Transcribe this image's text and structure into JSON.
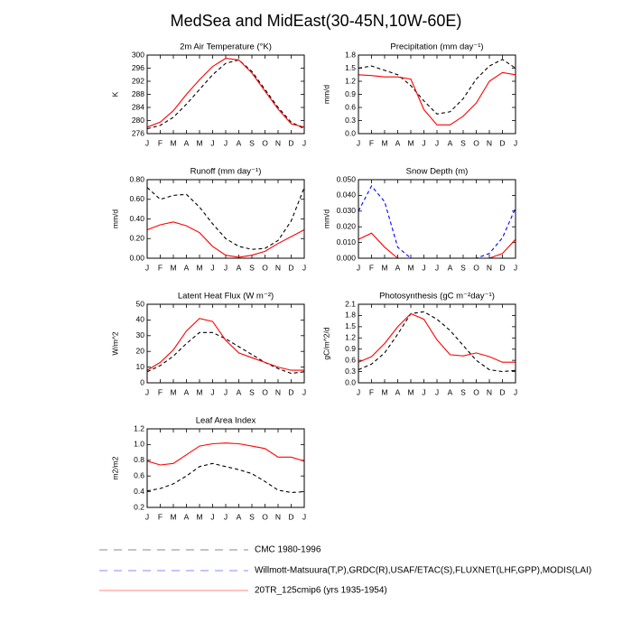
{
  "title": "MedSea and MidEast(30-45N,10W-60E)",
  "chart_data": [
    {
      "type": "line",
      "title": "2m Air Temperature (°K)",
      "ylabel": "K",
      "categories": [
        "J",
        "F",
        "M",
        "A",
        "M",
        "J",
        "J",
        "A",
        "S",
        "O",
        "N",
        "D",
        "J"
      ],
      "ylim": [
        276,
        300
      ],
      "yticks": [
        276,
        280,
        284,
        288,
        292,
        296,
        300
      ],
      "series": [
        {
          "name": "CMC 1980-1996",
          "color": "#000000",
          "dash": true,
          "values": [
            277.5,
            278.5,
            281,
            285,
            289.5,
            294,
            297.5,
            298.5,
            295,
            289.5,
            284,
            279.5,
            277.5
          ]
        },
        {
          "name": "20TR_125cmip6 (yrs 1935-1954)",
          "color": "#ff0000",
          "dash": false,
          "values": [
            278,
            279.5,
            283,
            288,
            292.5,
            296.5,
            299,
            298.5,
            294.5,
            289,
            283.5,
            279,
            278
          ]
        }
      ]
    },
    {
      "type": "line",
      "title": "Precipitation (mm day⁻¹)",
      "ylabel": "mm/d",
      "categories": [
        "J",
        "F",
        "M",
        "A",
        "M",
        "J",
        "J",
        "A",
        "S",
        "O",
        "N",
        "D",
        "J"
      ],
      "ylim": [
        0,
        1.8
      ],
      "yticks": [
        {
          "value": 0,
          "label": "0.0"
        },
        0.3,
        0.6,
        0.9,
        1.2,
        1.5,
        1.8
      ],
      "series": [
        {
          "name": "CMC 1980-1996",
          "color": "#000000",
          "dash": true,
          "values": [
            1.5,
            1.55,
            1.45,
            1.35,
            1.1,
            0.75,
            0.45,
            0.5,
            0.8,
            1.25,
            1.55,
            1.7,
            1.5
          ]
        },
        {
          "name": "20TR_125cmip6 (yrs 1935-1954)",
          "color": "#ff0000",
          "dash": false,
          "values": [
            1.35,
            1.33,
            1.3,
            1.3,
            1.25,
            0.55,
            0.2,
            0.2,
            0.4,
            0.7,
            1.2,
            1.4,
            1.35
          ]
        }
      ]
    },
    {
      "type": "line",
      "title": "Runoff (mm day⁻¹)",
      "ylabel": "mm/d",
      "categories": [
        "J",
        "F",
        "M",
        "A",
        "M",
        "J",
        "J",
        "A",
        "S",
        "O",
        "N",
        "D",
        "J"
      ],
      "ylim": [
        0,
        0.8
      ],
      "yticks": [
        {
          "value": 0,
          "label": "0.00"
        },
        {
          "value": 0.2,
          "label": "0.20"
        },
        {
          "value": 0.4,
          "label": "0.40"
        },
        {
          "value": 0.6,
          "label": "0.60"
        },
        {
          "value": 0.8,
          "label": "0.80"
        }
      ],
      "series": [
        {
          "name": "CMC 1980-1996",
          "color": "#000000",
          "dash": true,
          "values": [
            0.72,
            0.6,
            0.64,
            0.65,
            0.52,
            0.35,
            0.2,
            0.12,
            0.09,
            0.1,
            0.18,
            0.38,
            0.72
          ]
        },
        {
          "name": "20TR_125cmip6 (yrs 1935-1954)",
          "color": "#ff0000",
          "dash": false,
          "values": [
            0.29,
            0.34,
            0.37,
            0.33,
            0.26,
            0.12,
            0.03,
            0.01,
            0.03,
            0.07,
            0.15,
            0.22,
            0.29
          ]
        }
      ]
    },
    {
      "type": "line",
      "title": "Snow Depth (m)",
      "ylabel": "mm/d",
      "categories": [
        "J",
        "F",
        "M",
        "A",
        "M",
        "J",
        "J",
        "A",
        "S",
        "O",
        "N",
        "D",
        "J"
      ],
      "ylim": [
        0,
        0.05
      ],
      "yticks": [
        {
          "value": 0,
          "label": "0.000"
        },
        {
          "value": 0.01,
          "label": "0.010"
        },
        {
          "value": 0.02,
          "label": "0.020"
        },
        {
          "value": 0.03,
          "label": "0.030"
        },
        {
          "value": 0.04,
          "label": "0.040"
        },
        {
          "value": 0.05,
          "label": "0.050"
        }
      ],
      "series": [
        {
          "name": "Willmott-Matsuura(T,P),GRDC(R),USAF/ETAC(S),FLUXNET(LHF,GPP),MODIS(LAI)",
          "color": "#0000ff",
          "dash": true,
          "values": [
            0.03,
            0.046,
            0.036,
            0.007,
            0,
            0,
            0,
            0,
            0,
            0,
            0.003,
            0.013,
            0.032
          ]
        },
        {
          "name": "20TR_125cmip6 (yrs 1935-1954)",
          "color": "#ff0000",
          "dash": false,
          "values": [
            0.012,
            0.016,
            0.007,
            0,
            0,
            0,
            0,
            0,
            0,
            0,
            0,
            0.003,
            0.012
          ]
        }
      ]
    },
    {
      "type": "line",
      "title": "Latent Heat Flux (W m⁻²)",
      "ylabel": "W/m^2",
      "categories": [
        "J",
        "F",
        "M",
        "A",
        "M",
        "J",
        "J",
        "A",
        "S",
        "O",
        "N",
        "D",
        "J"
      ],
      "ylim": [
        0,
        50
      ],
      "yticks": [
        0,
        10,
        20,
        30,
        40,
        50
      ],
      "series": [
        {
          "name": "CMC 1980-1996",
          "color": "#000000",
          "dash": true,
          "values": [
            7,
            11,
            17,
            25,
            32,
            32,
            28,
            23,
            18,
            13,
            9,
            6,
            7
          ]
        },
        {
          "name": "20TR_125cmip6 (yrs 1935-1954)",
          "color": "#ff0000",
          "dash": false,
          "values": [
            8,
            13,
            21,
            33,
            41,
            39,
            27,
            19,
            16,
            13,
            10,
            8,
            8
          ]
        }
      ]
    },
    {
      "type": "line",
      "title": "Photosynthesis (gC m⁻²day⁻¹)",
      "ylabel": "gC/m^2/d",
      "categories": [
        "J",
        "F",
        "M",
        "A",
        "M",
        "J",
        "J",
        "A",
        "S",
        "O",
        "N",
        "D",
        "J"
      ],
      "ylim": [
        0,
        2.1
      ],
      "yticks": [
        {
          "value": 0,
          "label": "0.0"
        },
        0.3,
        0.6,
        0.9,
        1.2,
        1.5,
        1.8,
        2.1
      ],
      "series": [
        {
          "name": "CMC 1980-1996",
          "color": "#000000",
          "dash": true,
          "values": [
            0.35,
            0.5,
            0.8,
            1.3,
            1.85,
            1.9,
            1.7,
            1.4,
            1.0,
            0.6,
            0.35,
            0.3,
            0.33
          ]
        },
        {
          "name": "20TR_125cmip6 (yrs 1935-1954)",
          "color": "#ff0000",
          "dash": false,
          "values": [
            0.55,
            0.7,
            1.05,
            1.5,
            1.85,
            1.7,
            1.15,
            0.75,
            0.72,
            0.8,
            0.7,
            0.55,
            0.55
          ]
        }
      ]
    },
    {
      "type": "line",
      "title": "Leaf Area Index",
      "ylabel": "m2/m2",
      "categories": [
        "J",
        "F",
        "M",
        "A",
        "M",
        "J",
        "J",
        "A",
        "S",
        "O",
        "N",
        "D",
        "J"
      ],
      "ylim": [
        0.2,
        1.2
      ],
      "yticks": [
        0.2,
        0.4,
        0.6,
        0.8,
        {
          "value": 1,
          "label": "1.0"
        },
        1.2
      ],
      "series": [
        {
          "name": "CMC 1980-1996",
          "color": "#000000",
          "dash": true,
          "values": [
            0.41,
            0.44,
            0.5,
            0.6,
            0.72,
            0.76,
            0.72,
            0.68,
            0.63,
            0.53,
            0.42,
            0.39,
            0.4
          ]
        },
        {
          "name": "20TR_125cmip6 (yrs 1935-1954)",
          "color": "#ff0000",
          "dash": false,
          "values": [
            0.79,
            0.74,
            0.76,
            0.87,
            0.98,
            1.01,
            1.02,
            1.01,
            0.98,
            0.95,
            0.84,
            0.84,
            0.79
          ]
        }
      ]
    }
  ]
}
